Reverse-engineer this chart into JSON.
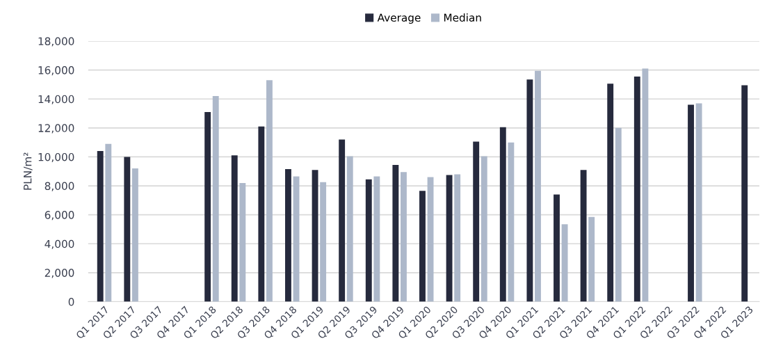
{
  "chart_data": {
    "type": "bar",
    "ylabel": "PLN/m²",
    "categories": [
      "Q1 2017",
      "Q2 2017",
      "Q3 2017",
      "Q4 2017",
      "Q1 2018",
      "Q2 2018",
      "Q3 2018",
      "Q4 2018",
      "Q1 2019",
      "Q2 2019",
      "Q3 2019",
      "Q4 2019",
      "Q1 2020",
      "Q2 2020",
      "Q3 2020",
      "Q4 2020",
      "Q1 2021",
      "Q2 2021",
      "Q3 2021",
      "Q4 2021",
      "Q1 2022",
      "Q2 2022",
      "Q3 2022",
      "Q4 2022",
      "Q1 2023"
    ],
    "series": [
      {
        "name": "Average",
        "color": "#262a3d",
        "values": [
          10400,
          10000,
          null,
          null,
          13100,
          10100,
          12100,
          9150,
          9100,
          11200,
          8450,
          9450,
          7650,
          8750,
          11050,
          12050,
          15350,
          7400,
          9100,
          15050,
          15550,
          null,
          13600,
          null,
          14950
        ]
      },
      {
        "name": "Median",
        "color": "#adb8ca",
        "values": [
          10900,
          9200,
          null,
          null,
          14200,
          8200,
          15300,
          8650,
          8250,
          10050,
          8650,
          8950,
          8600,
          8800,
          10050,
          11000,
          15950,
          5350,
          5850,
          12000,
          16100,
          null,
          13700,
          null,
          null
        ]
      }
    ],
    "ylim": [
      0,
      18000
    ],
    "yticks": [
      {
        "value": 0,
        "label": "0"
      },
      {
        "value": 2000,
        "label": "2,000"
      },
      {
        "value": 4000,
        "label": "4,000"
      },
      {
        "value": 6000,
        "label": "6,000"
      },
      {
        "value": 8000,
        "label": "8,000"
      },
      {
        "value": 10000,
        "label": "10,000"
      },
      {
        "value": 12000,
        "label": "12,000"
      },
      {
        "value": 14000,
        "label": "14,000"
      },
      {
        "value": 16000,
        "label": "16,000"
      },
      {
        "value": 18000,
        "label": "18,000"
      }
    ],
    "grid": "y",
    "legend": "top"
  }
}
